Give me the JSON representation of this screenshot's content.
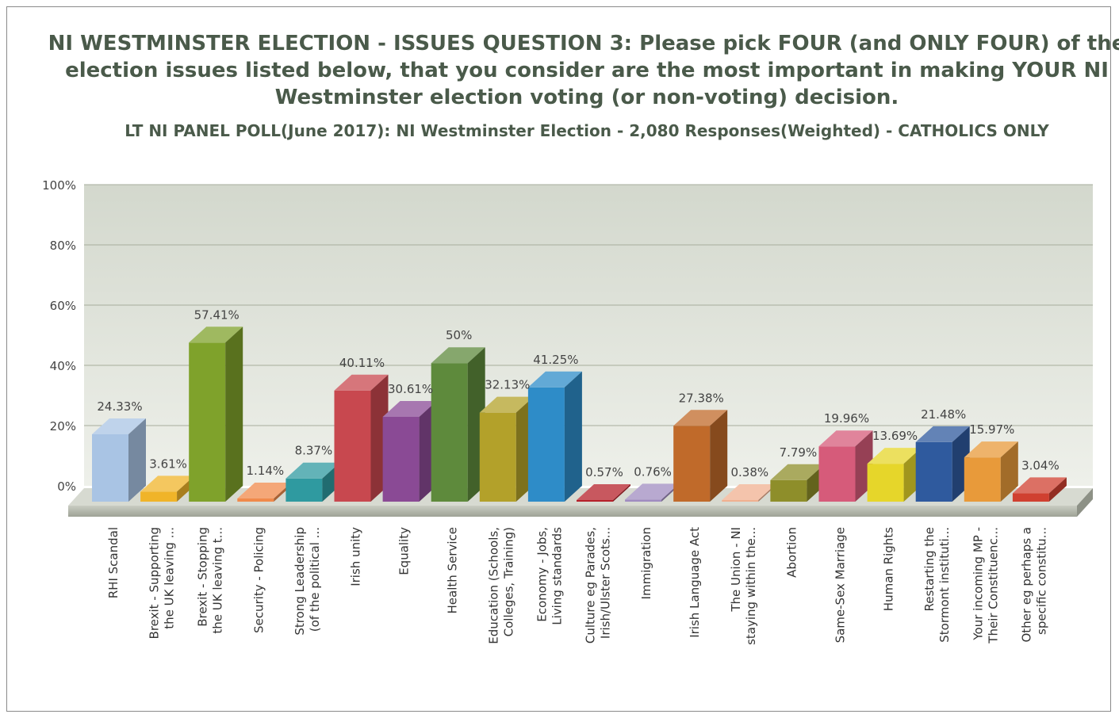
{
  "title": "NI WESTMINSTER ELECTION - ISSUES  QUESTION 3: Please pick FOUR (and ONLY FOUR) of the election issues listed below, that you consider are the most important in making YOUR NI Westminster election voting (or non-voting) decision.",
  "subtitle": "LT NI PANEL POLL(June 2017): NI Westminster Election - 2,080 Responses(Weighted) - CATHOLICS ONLY",
  "chart_data": {
    "type": "bar",
    "title": "NI WESTMINSTER ELECTION - ISSUES  QUESTION 3: Please pick FOUR (and ONLY FOUR) of the election issues listed below, that you consider are the most important in making YOUR NI Westminster election voting (or non-voting) decision.",
    "subtitle": "LT NI PANEL POLL(June 2017): NI Westminster Election - 2,080 Responses(Weighted) - CATHOLICS ONLY",
    "ylim": [
      0,
      100
    ],
    "y_ticks": [
      "0%",
      "20%",
      "40%",
      "60%",
      "80%",
      "100%"
    ],
    "grid": true,
    "categories": [
      [
        "RHI Scandal"
      ],
      [
        "Brexit - Supporting",
        "the UK leaving ..."
      ],
      [
        "Brexit - Stopping",
        "the UK leaving t..."
      ],
      [
        "Security - Policing"
      ],
      [
        "Strong Leadership",
        "(of the political ..."
      ],
      [
        "Irish unity"
      ],
      [
        "Equality"
      ],
      [
        "Health Service"
      ],
      [
        "Education (Schools,",
        "Colleges, Training)"
      ],
      [
        "Economy - Jobs,",
        "Living standards"
      ],
      [
        "Culture eg Parades,",
        "Irish/Ulster Scots..."
      ],
      [
        "Immigration"
      ],
      [
        "Irish Language Act"
      ],
      [
        "The Union - NI",
        "staying within the..."
      ],
      [
        "Abortion"
      ],
      [
        "Same-Sex Marriage"
      ],
      [
        "Human Rights"
      ],
      [
        "Restarting the",
        "Stormont instituti..."
      ],
      [
        "Your incoming MP -",
        "Their Constituenc..."
      ],
      [
        "Other eg perhaps a",
        "specific constitu..."
      ]
    ],
    "values": [
      24.33,
      3.61,
      57.41,
      1.14,
      8.37,
      40.11,
      30.61,
      50,
      32.13,
      41.25,
      0.57,
      0.76,
      27.38,
      0.38,
      7.79,
      19.96,
      13.69,
      21.48,
      15.97,
      3.04
    ],
    "value_labels": [
      "24.33%",
      "3.61%",
      "57.41%",
      "1.14%",
      "8.37%",
      "40.11%",
      "30.61%",
      "50%",
      "32.13%",
      "41.25%",
      "0.57%",
      "0.76%",
      "27.38%",
      "0.38%",
      "7.79%",
      "19.96%",
      "13.69%",
      "21.48%",
      "15.97%",
      "3.04%"
    ],
    "colors": [
      "#a9c4e4",
      "#f0b429",
      "#7fa22b",
      "#f08a4b",
      "#2f9aa0",
      "#c8484f",
      "#8a4a95",
      "#5e8a3c",
      "#b3a12a",
      "#2e8cc8",
      "#b5202a",
      "#a08cc0",
      "#c06a2a",
      "#f0b090",
      "#8e8e2a",
      "#d65b7a",
      "#e6d62a",
      "#2f5a9e",
      "#e89a3a",
      "#d04030"
    ]
  }
}
